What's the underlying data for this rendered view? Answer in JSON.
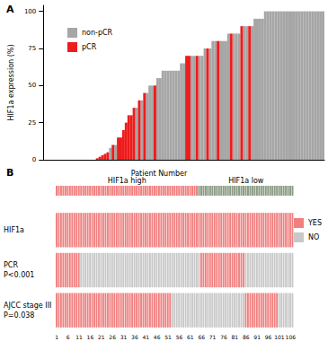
{
  "chart_data": [
    {
      "type": "bar",
      "title": "A",
      "y_label": "HIF1a expression (%)",
      "categories": [
        null,
        null,
        null,
        null,
        null,
        null,
        null,
        null,
        null,
        null,
        null,
        null,
        null,
        null,
        null,
        null,
        null,
        null,
        null,
        null,
        null,
        null,
        null,
        null,
        null,
        null,
        null,
        null,
        null,
        null,
        null,
        null,
        null,
        null,
        null,
        null,
        null,
        null,
        null,
        null,
        null,
        null,
        null,
        null,
        null,
        null,
        null,
        null,
        null,
        null,
        null,
        null,
        null,
        null,
        null,
        null,
        null,
        null,
        null,
        null,
        null,
        null,
        null,
        null,
        null,
        null,
        null,
        null,
        null,
        null,
        null,
        null,
        null,
        null,
        null,
        null,
        null,
        null,
        null,
        null,
        null,
        null,
        null,
        null,
        null,
        null,
        null,
        null,
        null,
        null,
        null,
        null,
        null,
        null,
        null,
        null,
        null,
        null,
        null,
        null,
        null,
        null,
        null,
        null,
        null,
        null,
        null
      ],
      "series": [
        {
          "name": "non-pCR",
          "color": "#a6a6a6",
          "values": [
            0,
            0,
            0,
            0,
            0,
            0,
            0,
            0,
            0,
            0,
            0,
            0,
            0,
            0,
            0,
            0,
            0,
            0,
            0,
            0,
            null,
            null,
            null,
            null,
            null,
            8,
            null,
            10,
            null,
            null,
            null,
            null,
            null,
            null,
            null,
            35,
            null,
            40,
            null,
            45,
            50,
            50,
            null,
            55,
            55,
            60,
            60,
            60,
            60,
            60,
            60,
            60,
            65,
            65,
            null,
            null,
            70,
            70,
            null,
            70,
            70,
            75,
            null,
            75,
            80,
            80,
            null,
            80,
            80,
            80,
            85,
            null,
            85,
            85,
            85,
            null,
            90,
            90,
            null,
            90,
            95,
            95,
            95,
            95,
            100,
            100,
            100,
            100,
            100,
            100,
            100,
            100,
            100,
            100,
            100,
            100,
            100,
            100,
            100,
            100,
            100,
            100,
            100,
            100,
            100,
            100,
            100
          ]
        },
        {
          "name": "pCR",
          "color": "#ee1c1c",
          "values": [
            null,
            null,
            null,
            null,
            null,
            null,
            null,
            null,
            null,
            null,
            null,
            null,
            null,
            null,
            null,
            null,
            null,
            null,
            null,
            null,
            1,
            2,
            3,
            4,
            5,
            null,
            10,
            null,
            15,
            15,
            20,
            25,
            30,
            30,
            35,
            null,
            40,
            null,
            45,
            null,
            null,
            null,
            50,
            null,
            null,
            null,
            null,
            null,
            null,
            null,
            null,
            null,
            null,
            null,
            70,
            70,
            null,
            null,
            70,
            null,
            null,
            null,
            75,
            null,
            null,
            null,
            80,
            null,
            null,
            null,
            null,
            85,
            null,
            null,
            null,
            90,
            null,
            null,
            90,
            null,
            null,
            null,
            null,
            null,
            null,
            null,
            null,
            null,
            null,
            null,
            null,
            null,
            null,
            null,
            null,
            null,
            null,
            null,
            null,
            null,
            null,
            null,
            null,
            null,
            null,
            null,
            null
          ]
        }
      ],
      "ylim": [
        0,
        104
      ],
      "yticks": [
        0,
        25,
        50,
        75,
        100
      ],
      "grid": false,
      "legend": "top-left"
    },
    {
      "type": "heatmap",
      "title": "B",
      "x_label": "Patient Number",
      "categories": [
        1,
        null,
        null,
        null,
        null,
        6,
        null,
        null,
        null,
        null,
        11,
        null,
        null,
        null,
        null,
        16,
        null,
        null,
        null,
        null,
        21,
        null,
        null,
        null,
        null,
        26,
        null,
        null,
        null,
        null,
        31,
        null,
        null,
        null,
        null,
        36,
        null,
        null,
        null,
        null,
        41,
        null,
        null,
        null,
        null,
        46,
        null,
        null,
        null,
        null,
        51,
        null,
        null,
        null,
        null,
        56,
        null,
        null,
        null,
        null,
        61,
        null,
        null,
        null,
        null,
        66,
        null,
        null,
        null,
        null,
        71,
        null,
        null,
        null,
        null,
        76,
        null,
        null,
        null,
        null,
        81,
        null,
        null,
        null,
        null,
        86,
        null,
        null,
        null,
        null,
        91,
        null,
        null,
        null,
        null,
        96,
        null,
        null,
        null,
        null,
        101,
        null,
        null,
        null,
        null,
        106,
        null
      ],
      "groups": [
        {
          "name": "HIF1a high",
          "color": "#f08080",
          "from": 1,
          "to": 64
        },
        {
          "name": "HIF1a low",
          "color": "#8c9c84",
          "from": 65,
          "to": 107
        }
      ],
      "rows": [
        {
          "name": "HIF1a",
          "values": [
            "YES",
            "YES",
            "YES",
            "YES",
            "YES",
            "YES",
            "YES",
            "YES",
            "YES",
            "YES",
            "YES",
            "YES",
            "YES",
            "YES",
            "YES",
            "YES",
            "YES",
            "YES",
            "YES",
            "YES",
            "YES",
            "YES",
            "YES",
            "YES",
            "YES",
            "YES",
            "YES",
            "YES",
            "YES",
            "YES",
            "YES",
            "YES",
            "YES",
            "YES",
            "YES",
            "YES",
            "YES",
            "YES",
            "YES",
            "YES",
            "YES",
            "YES",
            "YES",
            "YES",
            "YES",
            "YES",
            "YES",
            "YES",
            "YES",
            "YES",
            "YES",
            "YES",
            "YES",
            "YES",
            "YES",
            "YES",
            "YES",
            "YES",
            "YES",
            "YES",
            "YES",
            "YES",
            "YES",
            "YES",
            "YES",
            "YES",
            "YES",
            "YES",
            "YES",
            "YES",
            "YES",
            "YES",
            "YES",
            "YES",
            "YES",
            "YES",
            "YES",
            "YES",
            "YES",
            "YES",
            "YES",
            "YES",
            "YES",
            "YES",
            "YES",
            "YES",
            "YES",
            "YES",
            "YES",
            "YES",
            "YES",
            "YES",
            "YES",
            "YES",
            "YES",
            "YES",
            "YES",
            "YES",
            "YES",
            "YES",
            "YES",
            "YES",
            "YES",
            "YES",
            "YES",
            "YES",
            "YES"
          ]
        },
        {
          "name": "PCR",
          "annotation": "P<0.001",
          "values": [
            "YES",
            "YES",
            "YES",
            "YES",
            "YES",
            "YES",
            "YES",
            "YES",
            "YES",
            "YES",
            "YES",
            "NO",
            "NO",
            "NO",
            "NO",
            "NO",
            "NO",
            "NO",
            "NO",
            "NO",
            "NO",
            "NO",
            "NO",
            "NO",
            "NO",
            "NO",
            "NO",
            "NO",
            "NO",
            "NO",
            "NO",
            "NO",
            "NO",
            "NO",
            "NO",
            "NO",
            "NO",
            "NO",
            "NO",
            "NO",
            "NO",
            "NO",
            "NO",
            "NO",
            "NO",
            "NO",
            "NO",
            "NO",
            "NO",
            "NO",
            "NO",
            "NO",
            "NO",
            "NO",
            "NO",
            "NO",
            "NO",
            "NO",
            "NO",
            "NO",
            "NO",
            "NO",
            "NO",
            "NO",
            "NO",
            "YES",
            "YES",
            "YES",
            "YES",
            "YES",
            "YES",
            "YES",
            "YES",
            "YES",
            "YES",
            "YES",
            "YES",
            "YES",
            "YES",
            "YES",
            "YES",
            "YES",
            "YES",
            "YES",
            "YES",
            "NO",
            "NO",
            "NO",
            "NO",
            "NO",
            "NO",
            "NO",
            "NO",
            "NO",
            "NO",
            "NO",
            "NO",
            "NO",
            "NO",
            "NO",
            "NO",
            "NO",
            "NO",
            "NO",
            "NO",
            "NO",
            "NO"
          ]
        },
        {
          "name": "AJCC stage III",
          "annotation": "P=0.038",
          "values": [
            "YES",
            "YES",
            "YES",
            "YES",
            "YES",
            "YES",
            "YES",
            "YES",
            "YES",
            "YES",
            "YES",
            "YES",
            "YES",
            "YES",
            "YES",
            "YES",
            "YES",
            "YES",
            "YES",
            "YES",
            "YES",
            "YES",
            "YES",
            "YES",
            "YES",
            "YES",
            "YES",
            "YES",
            "YES",
            "YES",
            "YES",
            "YES",
            "YES",
            "YES",
            "YES",
            "YES",
            "YES",
            "YES",
            "YES",
            "YES",
            "YES",
            "YES",
            "YES",
            "YES",
            "YES",
            "YES",
            "YES",
            "YES",
            "YES",
            "YES",
            "YES",
            "YES",
            "NO",
            "NO",
            "NO",
            "NO",
            "NO",
            "NO",
            "NO",
            "NO",
            "NO",
            "NO",
            "NO",
            "NO",
            "NO",
            "NO",
            "NO",
            "NO",
            "NO",
            "NO",
            "NO",
            "NO",
            "NO",
            "NO",
            "NO",
            "NO",
            "NO",
            "NO",
            "NO",
            "NO",
            "NO",
            "NO",
            "NO",
            "NO",
            "NO",
            "YES",
            "YES",
            "YES",
            "YES",
            "YES",
            "YES",
            "YES",
            "YES",
            "YES",
            "YES",
            "YES",
            "YES",
            "YES",
            "YES",
            "YES",
            "NO",
            "NO",
            "NO",
            "NO",
            "NO",
            "NO",
            "NO"
          ]
        }
      ],
      "legend_items": [
        {
          "name": "YES",
          "color": "#f08080"
        },
        {
          "name": "NO",
          "color": "#c8c8c8"
        }
      ],
      "legend": "right"
    }
  ]
}
